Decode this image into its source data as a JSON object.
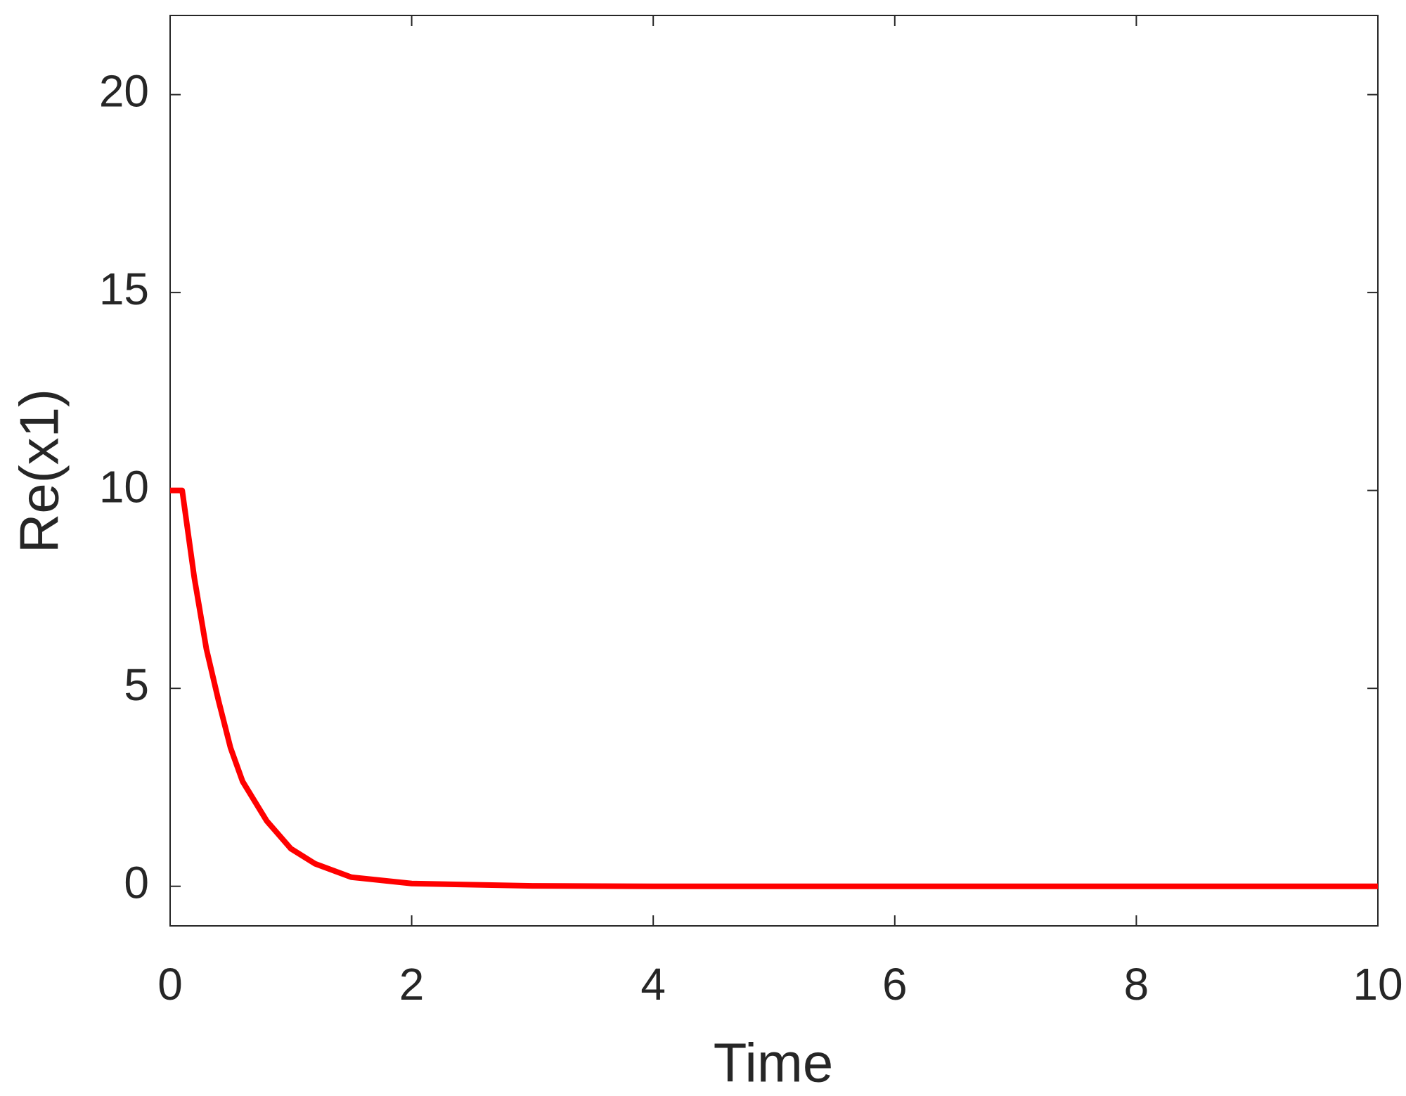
{
  "chart_data": {
    "type": "line",
    "x_label": "Time",
    "y_label": "Re(x1)",
    "x": [
      0,
      0.08,
      0.1,
      0.2,
      0.3,
      0.4,
      0.5,
      0.6,
      0.8,
      1.0,
      1.2,
      1.5,
      2,
      3,
      4,
      10
    ],
    "series": [
      {
        "name": "Re(x1)",
        "color": "#ff0000",
        "values": [
          10,
          10,
          10,
          7.8,
          6.0,
          4.7,
          3.5,
          2.65,
          1.65,
          0.95,
          0.57,
          0.23,
          0.07,
          0.01,
          0,
          0
        ]
      }
    ],
    "xlim": [
      0,
      10
    ],
    "xticks": [
      0,
      2,
      4,
      6,
      8,
      10
    ],
    "ylim": [
      -1,
      22
    ],
    "yticks": [
      0,
      5,
      10,
      15,
      20
    ],
    "grid": false
  }
}
